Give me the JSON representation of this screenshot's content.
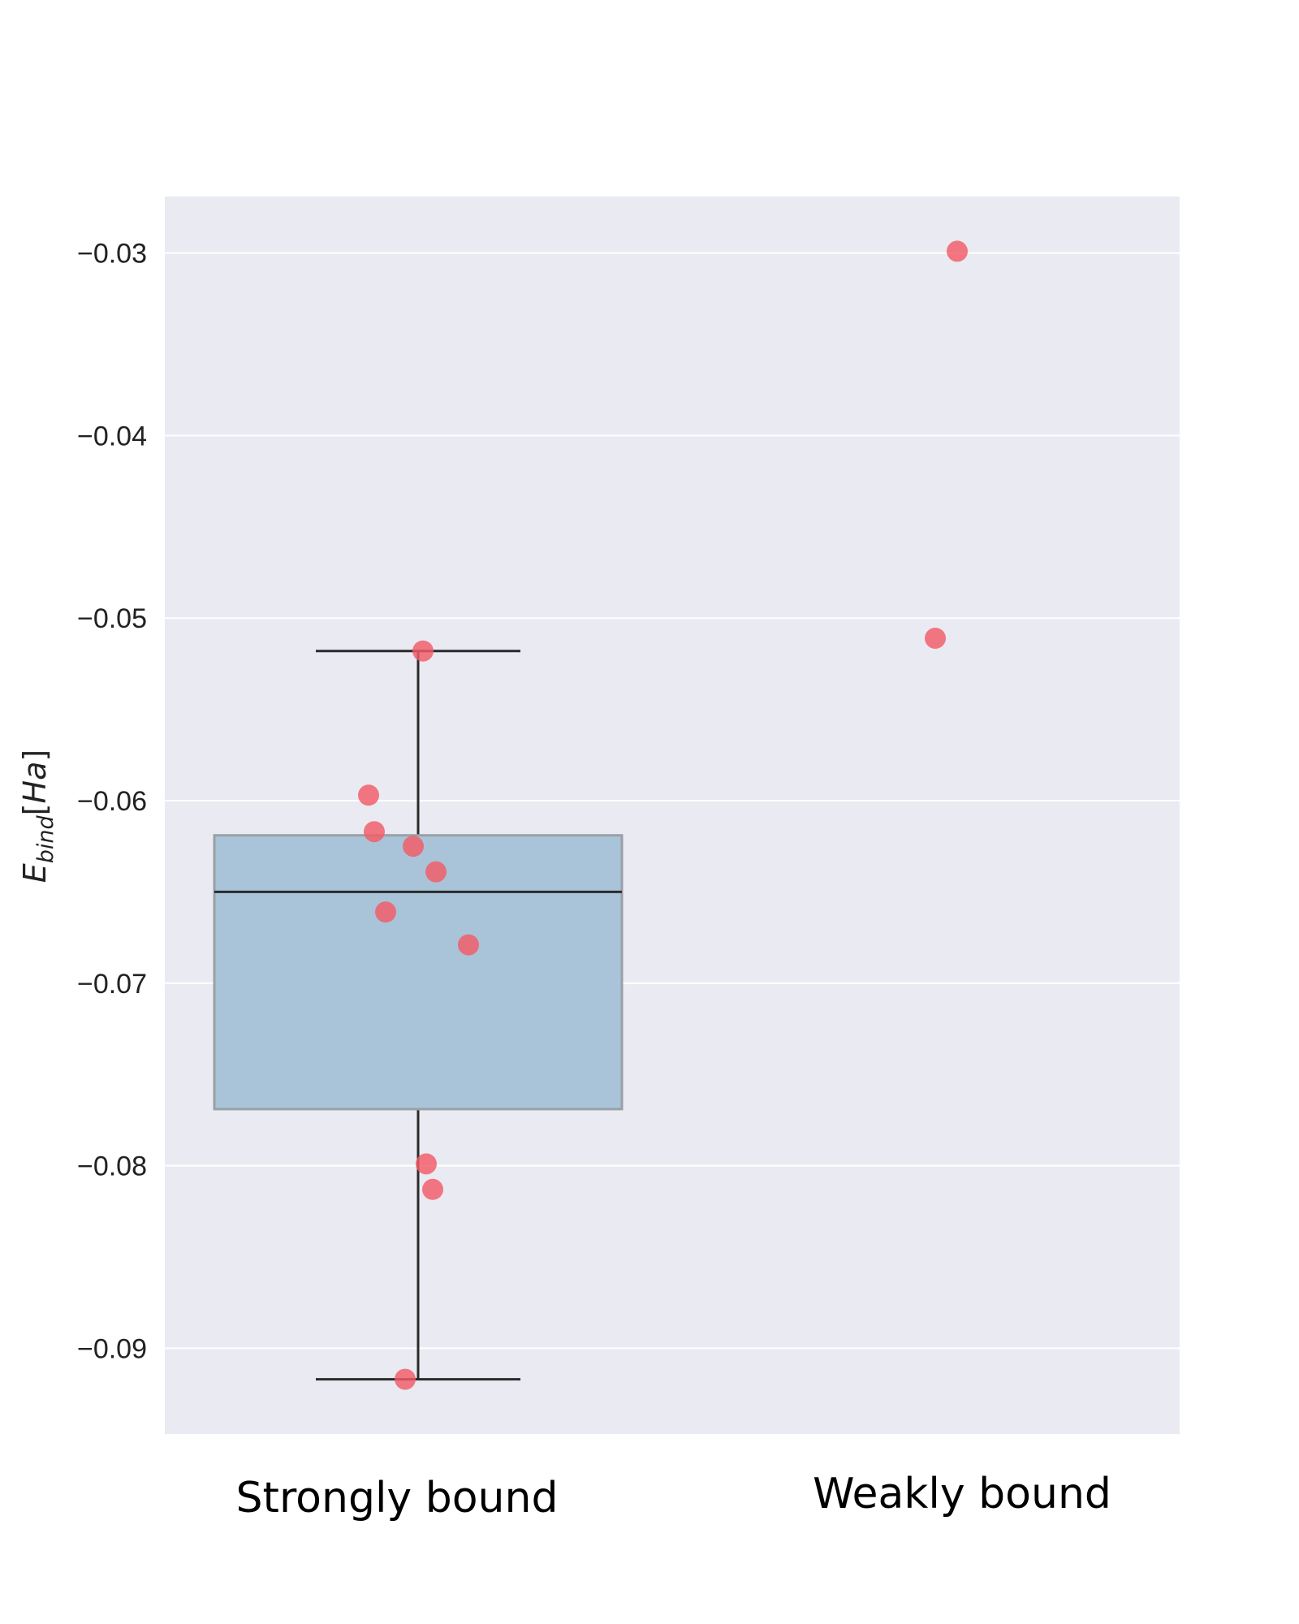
{
  "chart_data": {
    "type": "box",
    "ylabel": {
      "main": "E",
      "subscript": "bind",
      "unit_open": "[",
      "unit": "Ha",
      "unit_close": "]"
    },
    "categories": [
      "Strongly bound",
      "Weakly bound"
    ],
    "ylim": [
      -0.0947,
      -0.0269
    ],
    "yticks": [
      -0.03,
      -0.04,
      -0.05,
      -0.06,
      -0.07,
      -0.08,
      -0.09
    ],
    "ytick_labels": [
      "−0.03",
      "−0.04",
      "−0.05",
      "−0.06",
      "−0.07",
      "−0.08",
      "−0.09"
    ],
    "grid": true,
    "box": {
      "category": "Strongly bound",
      "whisker_high": -0.0518,
      "q3": -0.0619,
      "median": -0.065,
      "q1": -0.0769,
      "whisker_low": -0.0917
    },
    "points": [
      {
        "category": "Strongly bound",
        "y": -0.0518
      },
      {
        "category": "Strongly bound",
        "y": -0.0597
      },
      {
        "category": "Strongly bound",
        "y": -0.0617
      },
      {
        "category": "Strongly bound",
        "y": -0.0625
      },
      {
        "category": "Strongly bound",
        "y": -0.0639
      },
      {
        "category": "Strongly bound",
        "y": -0.0661
      },
      {
        "category": "Strongly bound",
        "y": -0.0679
      },
      {
        "category": "Strongly bound",
        "y": -0.0799
      },
      {
        "category": "Strongly bound",
        "y": -0.0813
      },
      {
        "category": "Strongly bound",
        "y": -0.0917
      },
      {
        "category": "Weakly bound",
        "y": -0.0299
      },
      {
        "category": "Weakly bound",
        "y": -0.0511
      }
    ],
    "colors": {
      "plot_background": "#eaeaf2",
      "grid": "#ffffff",
      "box_fill": "#a9c4d8",
      "box_edge": "#9aa0a8",
      "whisker": "#2b2b2b",
      "point": "#f35b66"
    }
  }
}
